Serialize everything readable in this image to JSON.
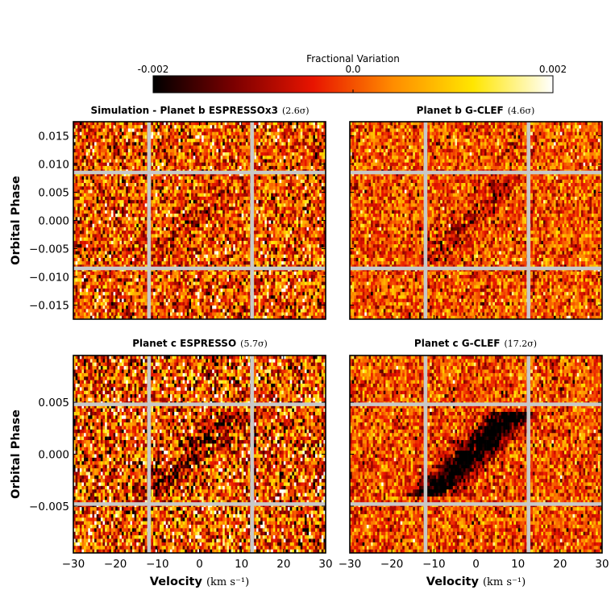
{
  "colorbar": {
    "title": "Fractional Variation",
    "ticks": [
      {
        "value": -0.002,
        "label": "-0.002"
      },
      {
        "value": 0.0,
        "label": "0.0"
      },
      {
        "value": 0.002,
        "label": "0.002"
      }
    ],
    "range": [
      -0.002,
      0.002
    ],
    "colormap": "afmhot",
    "stops": [
      "#000000",
      "#7a0000",
      "#e81400",
      "#ff8c00",
      "#ffe600",
      "#ffffff"
    ]
  },
  "colors": {
    "gap_lines": "#c8c8c8",
    "frame": "#000000"
  },
  "chart_data": [
    {
      "type": "heatmap",
      "id": "sim_b",
      "title": "Simulation - Planet b ESPRESSOx3",
      "title_sigma": "(2.6σ)",
      "xlabel": "",
      "ylabel": "Orbital Phase",
      "xlim": [
        -30,
        30
      ],
      "ylim": [
        -0.0175,
        0.0175
      ],
      "x_ticks": [
        -30,
        -20,
        -10,
        0,
        10,
        20,
        30
      ],
      "y_ticks": [
        0.015,
        0.01,
        0.005,
        0.0,
        -0.005,
        -0.01,
        -0.015
      ],
      "y_tick_labels": [
        "0.015",
        "0.010",
        "0.005",
        "0.000",
        "−0.005",
        "−0.010",
        "−0.015"
      ],
      "show_x_tick_labels": false,
      "show_y_tick_labels": true,
      "vlines": [
        -12,
        12.5
      ],
      "hlines": [
        0.0085,
        -0.0085
      ],
      "signal": {
        "phase_range": [
          -0.008,
          0.008
        ],
        "velocity_at_phase_min": -11,
        "velocity_at_phase_max": 9,
        "width_kms": 2.8,
        "amplitude": -0.00045
      },
      "noise_sigma": 0.0009,
      "pixel_grid": {
        "cols": 120,
        "rows": 58
      },
      "seed": 11
    },
    {
      "type": "heatmap",
      "id": "gclef_b",
      "title": "Planet b G-CLEF",
      "title_sigma": "(4.6σ)",
      "xlabel": "",
      "ylabel": "",
      "xlim": [
        -30,
        30
      ],
      "ylim": [
        -0.0175,
        0.0175
      ],
      "x_ticks": [
        -30,
        -20,
        -10,
        0,
        10,
        20,
        30
      ],
      "y_ticks": [
        0.015,
        0.01,
        0.005,
        0.0,
        -0.005,
        -0.01,
        -0.015
      ],
      "y_tick_labels": [
        "0.015",
        "0.010",
        "0.005",
        "0.000",
        "−0.005",
        "−0.010",
        "−0.015"
      ],
      "show_x_tick_labels": false,
      "show_y_tick_labels": false,
      "vlines": [
        -12,
        12.5
      ],
      "hlines": [
        0.0085,
        -0.0085
      ],
      "signal": {
        "phase_range": [
          -0.008,
          0.008
        ],
        "velocity_at_phase_min": -11,
        "velocity_at_phase_max": 9,
        "width_kms": 2.6,
        "amplitude": -0.0008
      },
      "noise_sigma": 0.00065,
      "pixel_grid": {
        "cols": 120,
        "rows": 58
      },
      "seed": 23
    },
    {
      "type": "heatmap",
      "id": "espresso_c",
      "title": "Planet c ESPRESSO",
      "title_sigma": "(5.7σ)",
      "xlabel": "Velocity",
      "xlabel_unit": "(km s⁻¹)",
      "ylabel": "Orbital Phase",
      "xlim": [
        -30,
        30
      ],
      "ylim": [
        -0.0095,
        0.0095
      ],
      "x_ticks": [
        -30,
        -20,
        -10,
        0,
        10,
        20,
        30
      ],
      "x_tick_labels": [
        "−30",
        "−20",
        "−10",
        "0",
        "10",
        "20",
        "30"
      ],
      "y_ticks": [
        0.005,
        0.0,
        -0.005
      ],
      "y_tick_labels": [
        "0.005",
        "0.000",
        "−0.005"
      ],
      "show_x_tick_labels": true,
      "show_y_tick_labels": true,
      "vlines": [
        -12,
        12.5
      ],
      "hlines": [
        0.0048,
        -0.0048
      ],
      "signal": {
        "phase_range": [
          -0.004,
          0.004
        ],
        "velocity_at_phase_min": -12,
        "velocity_at_phase_max": 9,
        "width_kms": 3.6,
        "amplitude": -0.0011
      },
      "noise_sigma": 0.0011,
      "pixel_grid": {
        "cols": 120,
        "rows": 56
      },
      "seed": 37
    },
    {
      "type": "heatmap",
      "id": "gclef_c",
      "title": "Planet c G-CLEF",
      "title_sigma": "(17.2σ)",
      "xlabel": "Velocity",
      "xlabel_unit": "(km s⁻¹)",
      "ylabel": "",
      "xlim": [
        -30,
        30
      ],
      "ylim": [
        -0.0095,
        0.0095
      ],
      "x_ticks": [
        -30,
        -20,
        -10,
        0,
        10,
        20,
        30
      ],
      "x_tick_labels": [
        "−30",
        "−20",
        "−10",
        "0",
        "10",
        "20",
        "30"
      ],
      "y_ticks": [
        0.005,
        0.0,
        -0.005
      ],
      "y_tick_labels": [
        "0.005",
        "0.000",
        "−0.005"
      ],
      "show_x_tick_labels": true,
      "show_y_tick_labels": false,
      "vlines": [
        -12,
        12.5
      ],
      "hlines": [
        0.0048,
        -0.0048
      ],
      "signal": {
        "phase_range": [
          -0.004,
          0.004
        ],
        "velocity_at_phase_min": -11,
        "velocity_at_phase_max": 9,
        "width_kms": 3.6,
        "amplitude": -0.0026
      },
      "noise_sigma": 0.00065,
      "pixel_grid": {
        "cols": 120,
        "rows": 56
      },
      "seed": 53
    }
  ]
}
